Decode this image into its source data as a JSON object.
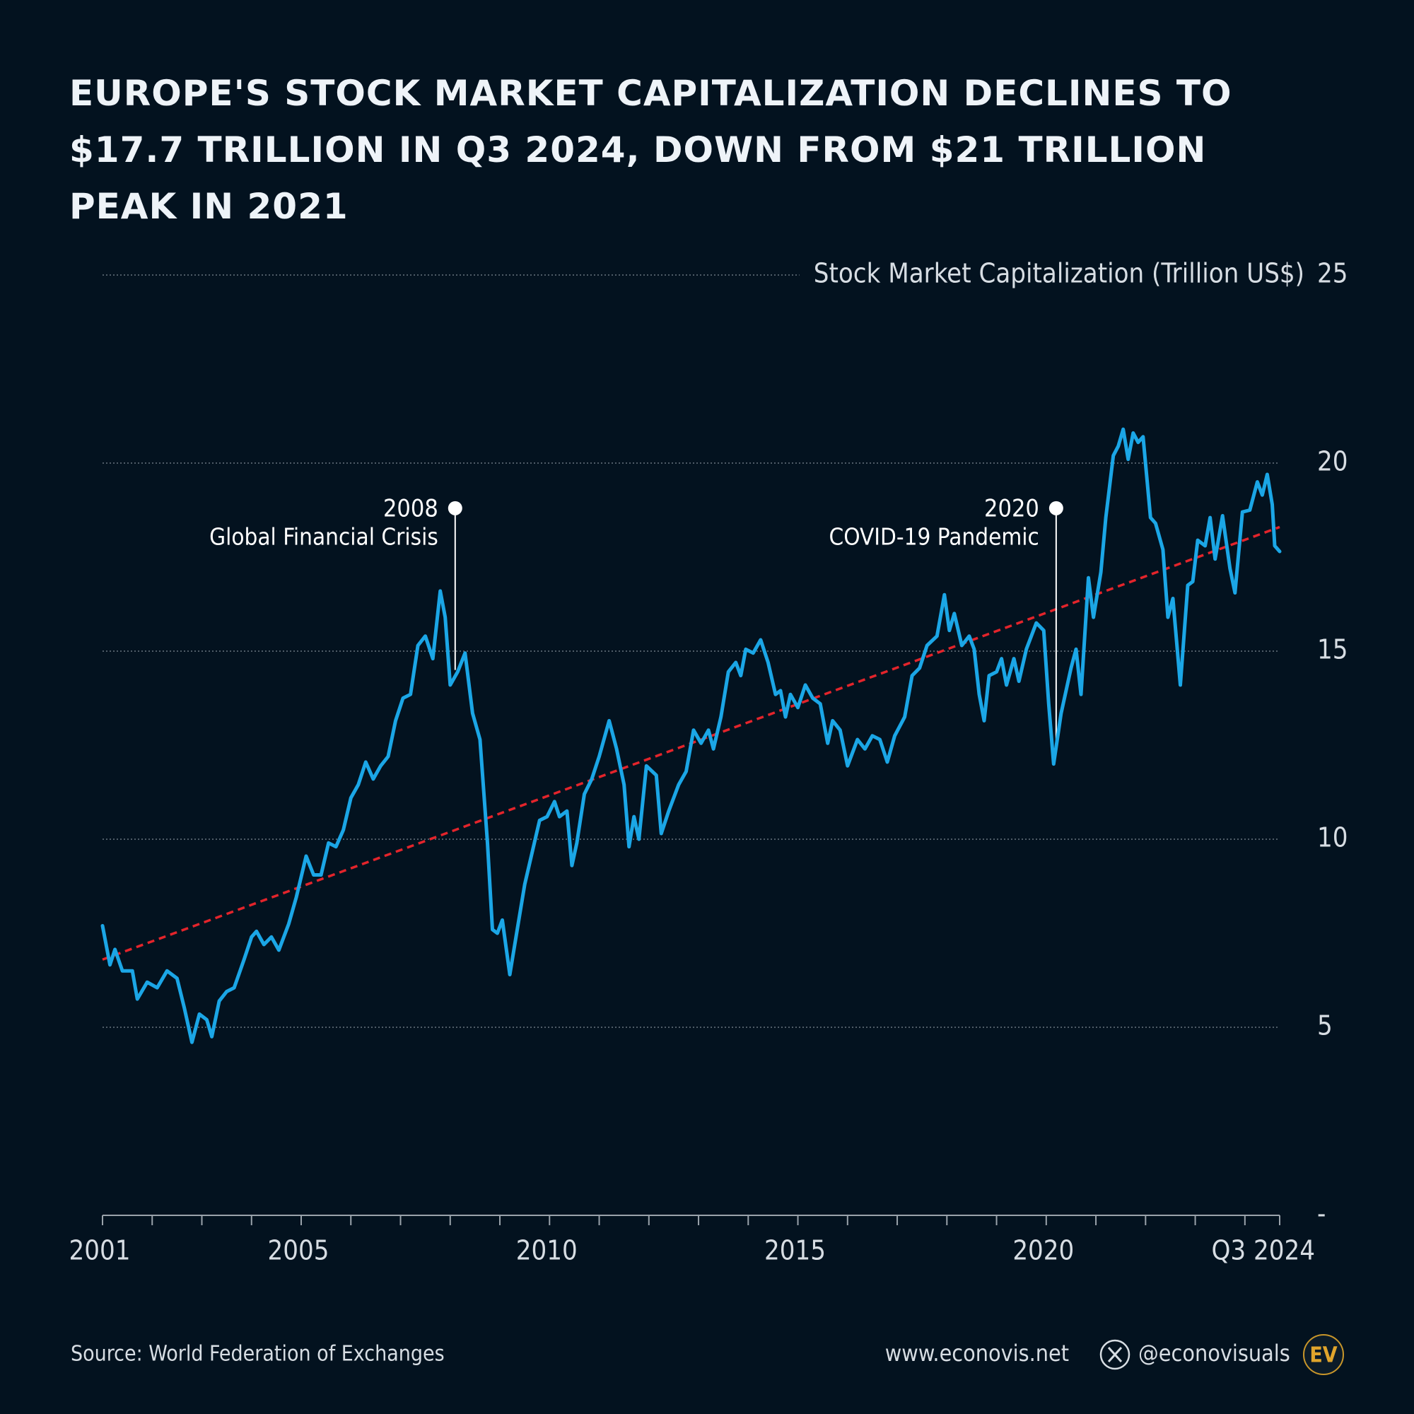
{
  "chart_data": {
    "type": "line",
    "title": "EUROPE'S STOCK MARKET CAPITALIZATION DECLINES TO $17.7 TRILLION IN Q3 2024, DOWN FROM $21 TRILLION PEAK IN 2021",
    "y_axis_label": "Stock Market Capitalization (Trillion US$)",
    "xlim": [
      2001,
      2024.7
    ],
    "xticks": [
      2001,
      2005,
      2010,
      2015,
      2020,
      {
        "value": 2024.7,
        "label": "Q3 2024"
      }
    ],
    "xminorticks": [
      2002,
      2003,
      2004,
      2006,
      2007,
      2008,
      2009,
      2011,
      2012,
      2013,
      2014,
      2016,
      2017,
      2018,
      2019,
      2021,
      2022,
      2023,
      2024
    ],
    "ylim": [
      0,
      25
    ],
    "yticks": [
      {
        "value": 0,
        "label": "-"
      },
      5,
      10,
      15,
      20,
      25
    ],
    "grid": true,
    "x": [
      2001.0,
      2001.15,
      2001.25,
      2001.4,
      2001.6,
      2001.7,
      2001.9,
      2002.1,
      2002.3,
      2002.5,
      2002.65,
      2002.8,
      2002.95,
      2003.1,
      2003.2,
      2003.35,
      2003.5,
      2003.65,
      2003.85,
      2004.0,
      2004.1,
      2004.25,
      2004.4,
      2004.55,
      2004.75,
      2004.9,
      2005.1,
      2005.25,
      2005.4,
      2005.55,
      2005.7,
      2005.85,
      2006.0,
      2006.15,
      2006.3,
      2006.45,
      2006.6,
      2006.75,
      2006.9,
      2007.05,
      2007.2,
      2007.35,
      2007.5,
      2007.65,
      2007.8,
      2007.9,
      2008.0,
      2008.15,
      2008.3,
      2008.45,
      2008.6,
      2008.75,
      2008.85,
      2008.95,
      2009.05,
      2009.2,
      2009.35,
      2009.5,
      2009.65,
      2009.8,
      2009.95,
      2010.1,
      2010.2,
      2010.35,
      2010.45,
      2010.55,
      2010.7,
      2010.85,
      2011.0,
      2011.2,
      2011.35,
      2011.5,
      2011.6,
      2011.7,
      2011.8,
      2011.95,
      2012.15,
      2012.25,
      2012.4,
      2012.6,
      2012.75,
      2012.9,
      2013.05,
      2013.2,
      2013.3,
      2013.45,
      2013.6,
      2013.75,
      2013.85,
      2013.95,
      2014.1,
      2014.25,
      2014.4,
      2014.55,
      2014.65,
      2014.75,
      2014.85,
      2015.0,
      2015.15,
      2015.3,
      2015.45,
      2015.6,
      2015.7,
      2015.85,
      2016.0,
      2016.2,
      2016.35,
      2016.5,
      2016.65,
      2016.8,
      2016.95,
      2017.15,
      2017.3,
      2017.45,
      2017.6,
      2017.8,
      2017.95,
      2018.05,
      2018.15,
      2018.3,
      2018.45,
      2018.55,
      2018.65,
      2018.75,
      2018.85,
      2019.0,
      2019.1,
      2019.2,
      2019.35,
      2019.45,
      2019.6,
      2019.8,
      2019.95,
      2020.05,
      2020.15,
      2020.3,
      2020.5,
      2020.6,
      2020.7,
      2020.85,
      2020.95,
      2021.1,
      2021.2,
      2021.35,
      2021.45,
      2021.55,
      2021.65,
      2021.75,
      2021.85,
      2021.95,
      2022.1,
      2022.2,
      2022.35,
      2022.45,
      2022.55,
      2022.7,
      2022.85,
      2022.95,
      2023.05,
      2023.2,
      2023.3,
      2023.4,
      2023.55,
      2023.7,
      2023.8,
      2023.95,
      2024.1,
      2024.25,
      2024.35,
      2024.45,
      2024.55,
      2024.6,
      2024.7
    ],
    "series": [
      {
        "color": "#1ba6e6",
        "values": [
          7.7,
          6.66,
          7.07,
          6.5,
          6.5,
          5.75,
          6.2,
          6.05,
          6.5,
          6.3,
          5.5,
          4.6,
          5.35,
          5.2,
          4.75,
          5.7,
          5.95,
          6.05,
          6.8,
          7.4,
          7.55,
          7.2,
          7.4,
          7.05,
          7.75,
          8.45,
          9.55,
          9.05,
          9.05,
          9.9,
          9.8,
          10.25,
          11.1,
          11.45,
          12.05,
          11.6,
          11.95,
          12.2,
          13.15,
          13.75,
          13.85,
          15.15,
          15.4,
          14.8,
          16.6,
          15.9,
          14.1,
          14.45,
          14.95,
          13.35,
          12.65,
          9.9,
          7.6,
          7.5,
          7.85,
          6.4,
          7.6,
          8.8,
          9.65,
          10.5,
          10.6,
          11.0,
          10.6,
          10.75,
          9.3,
          9.9,
          11.2,
          11.6,
          12.2,
          13.15,
          12.4,
          11.45,
          9.8,
          10.6,
          10.0,
          11.95,
          11.7,
          10.15,
          10.75,
          11.45,
          11.8,
          12.9,
          12.55,
          12.9,
          12.4,
          13.25,
          14.45,
          14.7,
          14.35,
          15.05,
          14.95,
          15.3,
          14.7,
          13.85,
          13.95,
          13.25,
          13.85,
          13.5,
          14.1,
          13.75,
          13.6,
          12.55,
          13.15,
          12.9,
          11.95,
          12.65,
          12.4,
          12.75,
          12.65,
          12.05,
          12.75,
          13.25,
          14.35,
          14.55,
          15.15,
          15.4,
          16.5,
          15.55,
          16.0,
          15.15,
          15.4,
          15.05,
          13.85,
          13.15,
          14.35,
          14.45,
          14.8,
          14.1,
          14.8,
          14.2,
          15.05,
          15.75,
          15.55,
          13.6,
          12.0,
          13.35,
          14.55,
          15.05,
          13.85,
          16.95,
          15.9,
          17.1,
          18.55,
          20.2,
          20.45,
          20.9,
          20.1,
          20.8,
          20.55,
          20.7,
          18.55,
          18.4,
          17.7,
          15.9,
          16.4,
          14.1,
          16.75,
          16.85,
          17.95,
          17.8,
          18.55,
          17.45,
          18.6,
          17.2,
          16.55,
          18.7,
          18.75,
          19.5,
          19.15,
          19.7,
          18.9,
          17.8,
          17.65
        ]
      }
    ],
    "trendline": {
      "x": [
        2001,
        2024.7
      ],
      "values": [
        6.8,
        18.3
      ],
      "color": "#e3242b"
    },
    "annotations": [
      {
        "year": "2008",
        "text": "Global Financial Crisis",
        "x": 2008.1,
        "y": 18.8,
        "y_end": 14.5
      },
      {
        "year": "2020",
        "text": "COVID-19 Pandemic",
        "x": 2020.2,
        "y": 18.8,
        "y_end": 12.6
      }
    ],
    "source": "Source: World Federation of Exchanges",
    "website": "www.econovis.net",
    "handle": "@econovisuals",
    "logo": "EV"
  }
}
